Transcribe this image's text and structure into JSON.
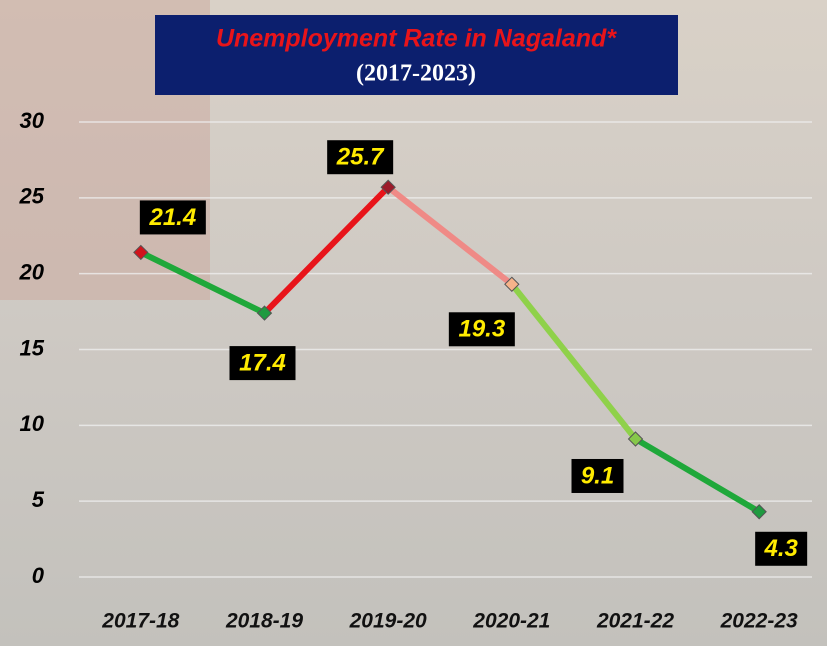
{
  "chart_data": {
    "type": "line",
    "title": "Unemployment Rate in Nagaland*",
    "subtitle": "(2017-2023)",
    "categories": [
      "2017-18",
      "2018-19",
      "2019-20",
      "2020-21",
      "2021-22",
      "2022-23"
    ],
    "values": [
      21.4,
      17.4,
      25.7,
      19.3,
      9.1,
      4.3
    ],
    "segment_colors": [
      "#1fa83a",
      "#e8141a",
      "#ef8a86",
      "#8fd14a",
      "#1fa83a"
    ],
    "marker_colors": [
      "#d0141c",
      "#1f9a40",
      "#9c1a2a",
      "#f6b38a",
      "#86c84a",
      "#1f9a40"
    ],
    "ylim": [
      0,
      30
    ],
    "yticks": [
      0,
      5,
      10,
      15,
      20,
      25,
      30
    ],
    "grid": true
  }
}
